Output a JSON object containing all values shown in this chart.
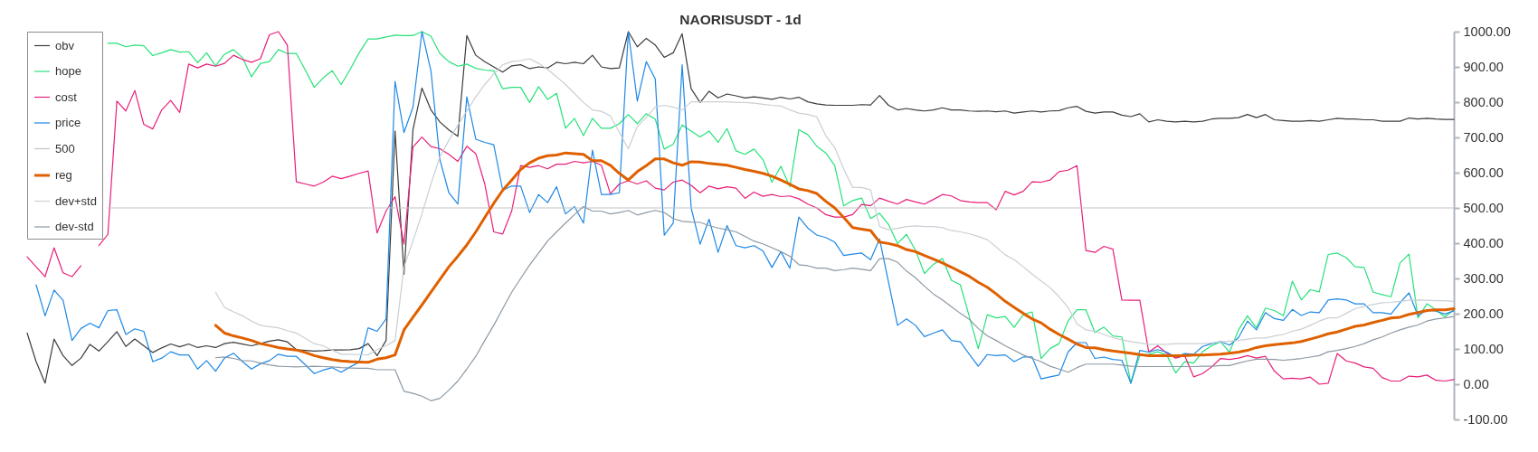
{
  "chart_data": {
    "type": "line",
    "title": "NAORISUSDT - 1d",
    "categories": [
      null,
      null,
      null,
      null,
      null,
      null,
      null,
      null,
      null,
      null,
      null,
      null,
      null,
      null,
      null,
      null,
      null,
      null,
      null,
      null,
      null,
      null,
      null,
      null,
      null,
      null,
      null,
      null,
      null,
      null,
      null,
      null,
      null,
      null,
      null,
      null,
      null,
      null,
      null,
      null,
      null,
      null,
      null,
      null,
      null,
      null,
      null,
      null,
      null,
      null,
      null,
      null,
      null,
      null,
      null,
      null,
      null,
      null,
      null,
      null,
      null,
      null,
      null,
      null,
      null,
      null,
      null,
      null,
      null,
      null,
      null,
      null,
      null,
      null,
      null,
      null,
      null,
      null,
      null,
      null,
      null,
      null,
      null,
      null,
      null,
      null,
      null,
      null,
      null,
      null,
      null,
      null,
      null,
      null,
      null,
      null,
      null,
      null,
      null,
      null,
      null,
      null,
      null,
      null,
      null,
      null,
      null,
      null,
      null,
      null,
      null,
      null,
      null,
      null,
      null,
      null,
      null,
      null,
      null,
      null,
      null,
      null,
      null,
      null,
      null,
      null,
      null,
      null,
      null,
      null,
      null,
      null,
      null,
      null,
      null,
      null,
      null,
      null,
      null,
      null,
      null,
      null,
      null,
      null,
      null,
      null,
      null,
      null,
      null,
      null,
      null,
      null,
      null,
      null,
      null,
      null,
      null,
      null,
      null,
      null
    ],
    "series": [
      {
        "name": "obv",
        "color": "#3c3c3c",
        "values": [
          145,
          64,
          3,
          128,
          81,
          53,
          74,
          113,
          94,
          121,
          149,
          107,
          128,
          109,
          90,
          103,
          114,
          106,
          114,
          104,
          109,
          104,
          115,
          119,
          114,
          109,
          115,
          122,
          126,
          120,
          98,
          96,
          94,
          95,
          97,
          97,
          98,
          101,
          115,
          81,
          124,
          718,
          312,
          722,
          840,
          778,
          744,
          721,
          703,
          989,
          933,
          915,
          900,
          885,
          903,
          906,
          895,
          900,
          897,
          913,
          909,
          913,
          909,
          933,
          900,
          895,
          897,
          1000,
          957,
          981,
          962,
          927,
          940,
          994,
          838,
          799,
          831,
          812,
          823,
          818,
          812,
          815,
          812,
          808,
          814,
          809,
          814,
          801,
          795,
          792,
          791,
          791,
          791,
          793,
          792,
          819,
          791,
          778,
          782,
          778,
          775,
          778,
          784,
          778,
          778,
          775,
          774,
          775,
          773,
          775,
          769,
          772,
          775,
          772,
          775,
          776,
          784,
          788,
          774,
          769,
          772,
          772,
          763,
          759,
          767,
          744,
          750,
          746,
          744,
          746,
          744,
          746,
          752,
          754,
          754,
          756,
          765,
          756,
          765,
          750,
          748,
          746,
          746,
          748,
          746,
          750,
          754,
          752,
          752,
          750,
          750,
          746,
          746,
          746,
          755,
          752,
          754,
          752,
          751,
          751
        ]
      },
      {
        "name": "hope",
        "color": "#27e27a",
        "values": [
          null,
          null,
          null,
          null,
          null,
          null,
          null,
          null,
          null,
          967,
          967,
          957,
          962,
          960,
          932,
          940,
          949,
          942,
          943,
          912,
          940,
          903,
          936,
          949,
          926,
          872,
          910,
          915,
          949,
          938,
          938,
          891,
          842,
          869,
          889,
          850,
          893,
          940,
          979,
          979,
          985,
          990,
          989,
          989,
          1000,
          987,
          938,
          915,
          902,
          908,
          896,
          891,
          889,
          838,
          842,
          842,
          799,
          844,
          808,
          825,
          726,
          754,
          705,
          754,
          726,
          726,
          739,
          765,
          739,
          767,
          752,
          667,
          681,
          735,
          718,
          701,
          718,
          686,
          725,
          662,
          652,
          667,
          637,
          573,
          618,
          560,
          722,
          708,
          675,
          656,
          620,
          506,
          521,
          528,
          470,
          485,
          453,
          399,
          425,
          380,
          314,
          340,
          357,
          295,
          282,
          192,
          101,
          197,
          188,
          192,
          161,
          197,
          205,
          73,
          101,
          115,
          179,
          211,
          211,
          147,
          162,
          137,
          134,
          3,
          81,
          85,
          92,
          83,
          32,
          64,
          60,
          92,
          109,
          120,
          91,
          154,
          194,
          160,
          216,
          209,
          194,
          292,
          239,
          268,
          262,
          368,
          372,
          359,
          333,
          331,
          261,
          254,
          248,
          344,
          369,
          188,
          228,
          211,
          191,
          211
        ]
      },
      {
        "name": "cost",
        "color": "#e91e7a",
        "values": [
          361,
          333,
          305,
          387,
          316,
          305,
          336,
          null,
          393,
          425,
          803,
          775,
          833,
          737,
          724,
          778,
          805,
          771,
          908,
          897,
          908,
          902,
          910,
          933,
          921,
          913,
          923,
          991,
          1000,
          962,
          574,
          568,
          562,
          573,
          590,
          583,
          590,
          598,
          605,
          429,
          491,
          532,
          397,
          673,
          701,
          674,
          668,
          652,
          632,
          675,
          654,
          568,
          432,
          426,
          491,
          620,
          615,
          620,
          611,
          624,
          624,
          632,
          628,
          632,
          621,
          540,
          568,
          577,
          568,
          577,
          556,
          551,
          573,
          579,
          564,
          543,
          562,
          554,
          560,
          556,
          527,
          545,
          533,
          538,
          532,
          534,
          526,
          511,
          500,
          481,
          474,
          474,
          481,
          510,
          506,
          528,
          519,
          511,
          524,
          517,
          511,
          524,
          538,
          534,
          521,
          517,
          515,
          515,
          495,
          547,
          537,
          547,
          574,
          573,
          579,
          603,
          607,
          620,
          379,
          374,
          391,
          383,
          239,
          238,
          238,
          91,
          109,
          88,
          74,
          81,
          21,
          30,
          49,
          73,
          70,
          74,
          81,
          74,
          79,
          37,
          15,
          17,
          15,
          20,
          0,
          3,
          87,
          66,
          60,
          49,
          45,
          19,
          9,
          9,
          23,
          21,
          26,
          11,
          9,
          13
        ]
      },
      {
        "name": "price",
        "color": "#1e88e5",
        "values": [
          null,
          282,
          194,
          267,
          238,
          124,
          158,
          173,
          160,
          209,
          211,
          141,
          157,
          150,
          64,
          74,
          92,
          83,
          83,
          43,
          67,
          37,
          74,
          88,
          64,
          43,
          58,
          67,
          85,
          79,
          79,
          55,
          30,
          40,
          47,
          34,
          49,
          62,
          160,
          150,
          185,
          859,
          714,
          786,
          1000,
          889,
          637,
          543,
          511,
          815,
          695,
          686,
          679,
          550,
          562,
          562,
          487,
          538,
          515,
          560,
          483,
          504,
          457,
          664,
          538,
          538,
          543,
          1000,
          803,
          915,
          866,
          423,
          457,
          906,
          500,
          397,
          468,
          374,
          450,
          393,
          387,
          393,
          378,
          331,
          376,
          329,
          474,
          443,
          423,
          416,
          403,
          365,
          369,
          372,
          353,
          412,
          289,
          167,
          185,
          167,
          135,
          145,
          154,
          124,
          120,
          85,
          51,
          84,
          81,
          83,
          64,
          77,
          77,
          15,
          21,
          26,
          91,
          118,
          118,
          73,
          77,
          70,
          68,
          3,
          96,
          91,
          98,
          91,
          77,
          87,
          85,
          107,
          115,
          121,
          111,
          132,
          179,
          154,
          203,
          186,
          181,
          212,
          195,
          205,
          203,
          239,
          242,
          239,
          228,
          228,
          203,
          203,
          199,
          231,
          259,
          194,
          211,
          207,
          199,
          208
        ]
      },
      {
        "name": "500",
        "color": "#c4c4c4",
        "values": [
          null,
          null,
          null,
          null,
          null,
          null,
          null,
          null,
          null,
          500,
          500,
          500,
          500,
          500,
          500,
          500,
          500,
          500,
          500,
          500,
          500,
          500,
          500,
          500,
          500,
          500,
          500,
          500,
          500,
          500,
          500,
          500,
          500,
          500,
          500,
          500,
          500,
          500,
          500,
          500,
          500,
          500,
          500,
          500,
          500,
          500,
          500,
          500,
          500,
          500,
          500,
          500,
          500,
          500,
          500,
          500,
          500,
          500,
          500,
          500,
          500,
          500,
          500,
          500,
          500,
          500,
          500,
          500,
          500,
          500,
          500,
          500,
          500,
          500,
          500,
          500,
          500,
          500,
          500,
          500,
          500,
          500,
          500,
          500,
          500,
          500,
          500,
          500,
          500,
          500,
          500,
          500,
          500,
          500,
          500,
          500,
          500,
          500,
          500,
          500,
          500,
          500,
          500,
          500,
          500,
          500,
          500,
          500,
          500,
          500,
          500,
          500,
          500,
          500,
          500,
          500,
          500,
          500,
          500,
          500,
          500,
          500,
          500,
          500,
          500,
          500,
          500,
          500,
          500,
          500,
          500,
          500,
          500,
          500,
          500,
          500,
          500,
          500,
          500,
          500,
          500,
          500,
          500,
          500,
          500,
          500,
          500,
          500,
          500,
          500,
          500,
          500,
          500,
          500,
          500,
          500,
          500,
          500,
          500,
          500
        ]
      },
      {
        "name": "reg",
        "color": "#df6000",
        "values": [
          null,
          null,
          null,
          null,
          null,
          null,
          null,
          null,
          null,
          null,
          null,
          null,
          null,
          null,
          null,
          null,
          null,
          null,
          null,
          null,
          null,
          167,
          145,
          137,
          131,
          124,
          115,
          110,
          104,
          100,
          97,
          90,
          81,
          75,
          70,
          66,
          64,
          63,
          62,
          71,
          75,
          83,
          154,
          190,
          225,
          261,
          297,
          333,
          363,
          395,
          432,
          473,
          513,
          550,
          579,
          609,
          628,
          641,
          648,
          650,
          656,
          654,
          652,
          634,
          634,
          621,
          598,
          579,
          603,
          620,
          639,
          639,
          628,
          621,
          631,
          630,
          626,
          624,
          621,
          615,
          609,
          604,
          598,
          590,
          579,
          567,
          554,
          549,
          541,
          519,
          500,
          473,
          444,
          440,
          436,
          403,
          399,
          393,
          382,
          376,
          365,
          355,
          344,
          332,
          319,
          306,
          289,
          275,
          256,
          235,
          218,
          201,
          185,
          174,
          156,
          141,
          128,
          114,
          104,
          103,
          98,
          94,
          91,
          88,
          84,
          81,
          81,
          81,
          81,
          81,
          83,
          83,
          84,
          85,
          88,
          91,
          96,
          104,
          109,
          112,
          115,
          117,
          121,
          128,
          135,
          143,
          148,
          156,
          164,
          168,
          175,
          181,
          188,
          190,
          198,
          203,
          209,
          211,
          211,
          214
        ]
      },
      {
        "name": "dev+std",
        "color": "#c9cfd4",
        "values": [
          null,
          null,
          null,
          null,
          null,
          null,
          null,
          null,
          null,
          null,
          null,
          null,
          null,
          null,
          null,
          null,
          null,
          null,
          null,
          null,
          null,
          261,
          218,
          205,
          194,
          179,
          167,
          163,
          160,
          152,
          145,
          130,
          115,
          109,
          97,
          85,
          85,
          84,
          83,
          98,
          109,
          124,
          333,
          406,
          483,
          568,
          645,
          692,
          735,
          775,
          815,
          850,
          880,
          906,
          915,
          918,
          923,
          910,
          893,
          872,
          850,
          825,
          799,
          778,
          774,
          761,
          714,
          668,
          731,
          756,
          786,
          791,
          786,
          778,
          801,
          801,
          801,
          801,
          801,
          799,
          799,
          797,
          794,
          791,
          789,
          778,
          769,
          765,
          758,
          705,
          671,
          611,
          558,
          558,
          551,
          447,
          438,
          442,
          447,
          449,
          447,
          447,
          444,
          436,
          432,
          427,
          419,
          410,
          389,
          367,
          353,
          333,
          312,
          293,
          274,
          248,
          218,
          171,
          154,
          150,
          141,
          132,
          126,
          121,
          117,
          113,
          113,
          113,
          115,
          115,
          115,
          115,
          117,
          120,
          122,
          124,
          128,
          131,
          131,
          137,
          141,
          150,
          156,
          167,
          179,
          188,
          188,
          201,
          214,
          221,
          226,
          231,
          232,
          235,
          238,
          239,
          238,
          237,
          237,
          235
        ]
      },
      {
        "name": "dev-std",
        "color": "#8d99a4",
        "values": [
          null,
          null,
          null,
          null,
          null,
          null,
          null,
          null,
          null,
          null,
          null,
          null,
          null,
          null,
          null,
          null,
          null,
          null,
          null,
          null,
          null,
          75,
          77,
          73,
          67,
          66,
          60,
          55,
          51,
          50,
          49,
          50,
          51,
          50,
          49,
          47,
          46,
          45,
          45,
          41,
          41,
          41,
          -20,
          -26,
          -34,
          -47,
          -40,
          -17,
          9,
          43,
          79,
          124,
          167,
          214,
          261,
          300,
          338,
          372,
          406,
          432,
          457,
          481,
          504,
          491,
          491,
          483,
          487,
          493,
          480,
          487,
          493,
          487,
          470,
          462,
          460,
          459,
          450,
          443,
          438,
          432,
          419,
          406,
          398,
          387,
          376,
          363,
          339,
          336,
          329,
          329,
          322,
          325,
          329,
          326,
          322,
          356,
          356,
          346,
          321,
          302,
          278,
          256,
          239,
          220,
          201,
          184,
          158,
          137,
          124,
          109,
          96,
          83,
          73,
          64,
          51,
          43,
          34,
          47,
          57,
          57,
          57,
          57,
          54,
          51,
          50,
          50,
          50,
          50,
          50,
          50,
          50,
          51,
          51,
          53,
          53,
          60,
          66,
          71,
          71,
          70,
          68,
          70,
          73,
          77,
          81,
          92,
          96,
          101,
          107,
          115,
          126,
          134,
          145,
          154,
          162,
          168,
          179,
          185,
          188,
          192
        ]
      }
    ],
    "ylim": [
      -100,
      1000
    ],
    "yticks": [
      {
        "value": -100,
        "label": "-100.00"
      },
      {
        "value": 0,
        "label": "0.00"
      },
      {
        "value": 100,
        "label": "100.00"
      },
      {
        "value": 200,
        "label": "200.00"
      },
      {
        "value": 300,
        "label": "300.00"
      },
      {
        "value": 400,
        "label": "400.00"
      },
      {
        "value": 500,
        "label": "500.00"
      },
      {
        "value": 600,
        "label": "600.00"
      },
      {
        "value": 700,
        "label": "700.00"
      },
      {
        "value": 800,
        "label": "800.00"
      },
      {
        "value": 900,
        "label": "900.00"
      },
      {
        "value": 1000,
        "label": "1000.00"
      }
    ],
    "legend": "top left"
  }
}
